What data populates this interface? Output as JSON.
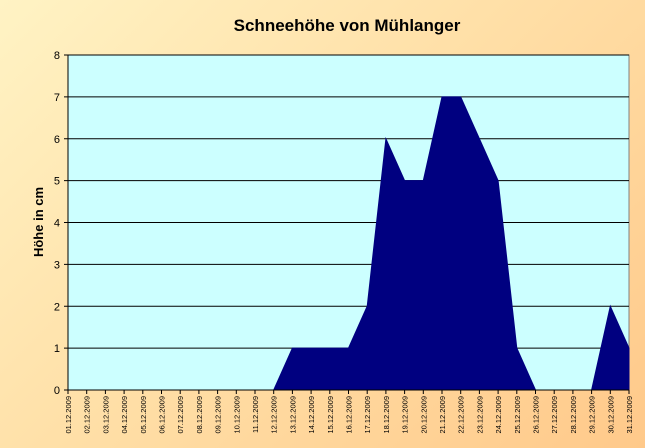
{
  "chart_data": {
    "type": "area",
    "title": "Schneehöhe von Mühlanger",
    "xlabel": "",
    "ylabel": "Höhe in cm",
    "ylim": [
      0,
      8
    ],
    "yticks": [
      "0",
      "1",
      "2",
      "3",
      "4",
      "5",
      "6",
      "7",
      "8"
    ],
    "grid": true,
    "legend": "none",
    "colors": {
      "area": "#000080",
      "plot_bg": "#ccffff",
      "grid": "#000000"
    },
    "categories": [
      "01.12.2009",
      "02.12.2009",
      "03.12.2009",
      "04.12.2009",
      "05.12.2009",
      "06.12.2009",
      "07.12.2009",
      "08.12.2009",
      "09.12.2009",
      "10.12.2009",
      "11.12.2009",
      "12.12.2009",
      "13.12.2009",
      "14.12.2009",
      "15.12.2009",
      "16.12.2009",
      "17.12.2009",
      "18.12.2009",
      "19.12.2009",
      "20.12.2009",
      "21.12.2009",
      "22.12.2009",
      "23.12.2009",
      "24.12.2009",
      "25.12.2009",
      "26.12.2009",
      "27.12.2009",
      "28.12.2009",
      "29.12.2009",
      "30.12.2009",
      "31.12.2009"
    ],
    "values": [
      0,
      0,
      0,
      0,
      0,
      0,
      0,
      0,
      0,
      0,
      0,
      0,
      1,
      1,
      1,
      1,
      2,
      6,
      5,
      5,
      7,
      7,
      6,
      5,
      1,
      0,
      0,
      0,
      0,
      2,
      1
    ]
  }
}
